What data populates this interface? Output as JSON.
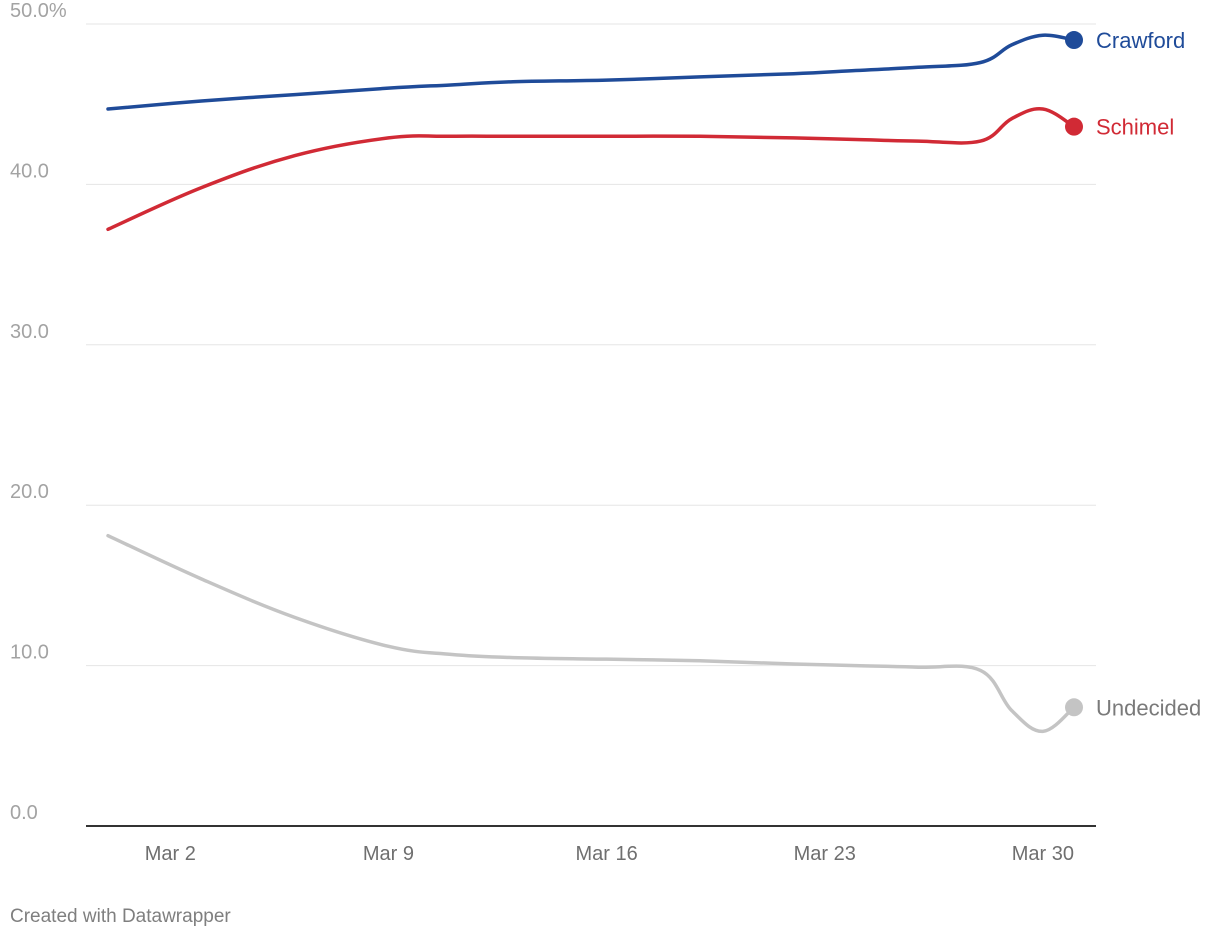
{
  "chart_data": {
    "type": "line",
    "title": "",
    "xlabel": "",
    "ylabel": "",
    "ylim": [
      0,
      50
    ],
    "y_ticks": [
      0,
      10,
      20,
      30,
      40,
      50
    ],
    "y_tick_labels": [
      "0.0",
      "10.0",
      "20.0",
      "30.0",
      "40.0",
      "50.0%"
    ],
    "xlim": [
      0,
      31
    ],
    "x_ticks": [
      2,
      9,
      16,
      23,
      30
    ],
    "x_tick_labels": [
      "Mar 2",
      "Mar 9",
      "Mar 16",
      "Mar 23",
      "Mar 30"
    ],
    "grid": true,
    "x": [
      0,
      3,
      6,
      9,
      11,
      13,
      16,
      19,
      22,
      24,
      26,
      28,
      29,
      30,
      31
    ],
    "series": [
      {
        "name": "Crawford",
        "color": "#1f4b99",
        "values": [
          44.7,
          45.2,
          45.6,
          46.0,
          46.2,
          46.4,
          46.5,
          46.7,
          46.9,
          47.1,
          47.3,
          47.6,
          48.7,
          49.3,
          49.0
        ]
      },
      {
        "name": "Schimel",
        "color": "#d12a35",
        "values": [
          37.2,
          39.8,
          41.8,
          42.9,
          43.0,
          43.0,
          43.0,
          43.0,
          42.9,
          42.8,
          42.7,
          42.7,
          44.1,
          44.7,
          43.6
        ]
      },
      {
        "name": "Undecided",
        "color": "#c4c4c4",
        "label_color": "#7a7a7a",
        "values": [
          18.1,
          15.4,
          13.0,
          11.2,
          10.7,
          10.5,
          10.4,
          10.3,
          10.1,
          10.0,
          9.9,
          9.7,
          7.2,
          5.9,
          7.4
        ]
      }
    ]
  },
  "footer": {
    "credit": "Created with Datawrapper"
  }
}
